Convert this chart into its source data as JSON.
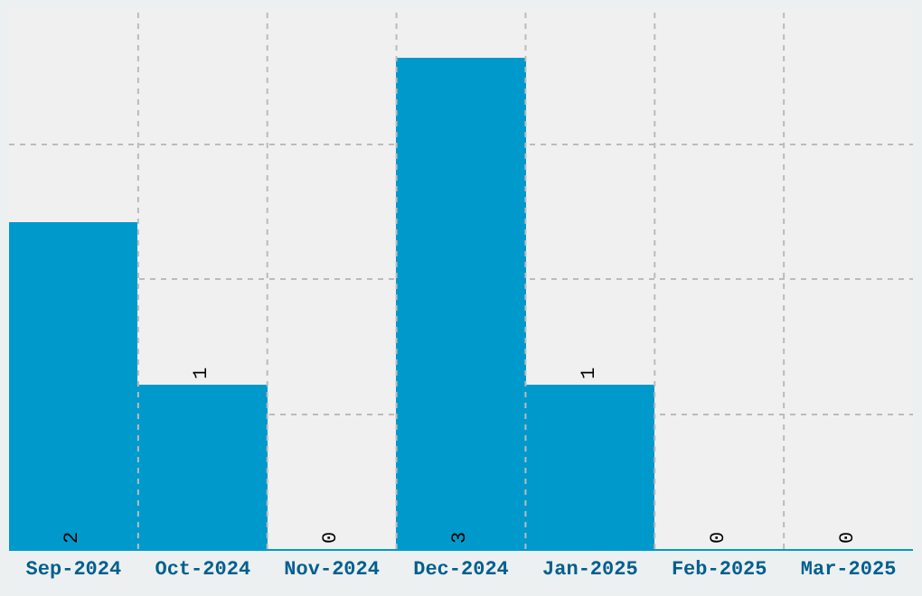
{
  "chart_data": {
    "type": "bar",
    "categories": [
      "Sep-2024",
      "Oct-2024",
      "Nov-2024",
      "Dec-2024",
      "Jan-2025",
      "Feb-2025",
      "Mar-2025"
    ],
    "values": [
      2,
      1,
      0,
      3,
      1,
      0,
      0
    ],
    "color": "#0099cc",
    "data_labels": true,
    "ylim": [
      0,
      3.3
    ],
    "yticks": [
      {
        "value": 0.825,
        "label": null
      },
      {
        "value": 1.65,
        "label": null
      },
      {
        "value": 2.475,
        "label": null
      }
    ],
    "tick_labels": "x",
    "grid": true
  }
}
